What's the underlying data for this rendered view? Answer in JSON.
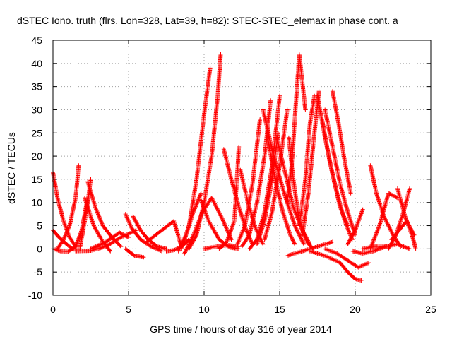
{
  "chart_data": {
    "type": "scatter",
    "title": "dSTEC Iono. truth (flrs, Lon=328, Lat=39, h=82): STEC-STEC_elemax in phase cont. a",
    "xlabel": "GPS time / hours of day 316 of year 2014",
    "ylabel": "dSTEC  / TECUs",
    "xlim": [
      0,
      25
    ],
    "ylim": [
      -10,
      45
    ],
    "x_ticks": [
      0,
      5,
      10,
      15,
      20,
      25
    ],
    "y_ticks": [
      -10,
      -5,
      0,
      5,
      10,
      15,
      20,
      25,
      30,
      35,
      40,
      45
    ],
    "grid": true,
    "marker": "+",
    "color": "#ff0000",
    "series": [
      {
        "x": [
          0.0,
          0.3,
          0.7,
          1.1,
          1.5
        ],
        "y": [
          16.5,
          11,
          6,
          2.5,
          0.5
        ]
      },
      {
        "x": [
          0.0,
          0.4,
          0.9,
          1.3,
          1.8
        ],
        "y": [
          4,
          2.5,
          1,
          0,
          0
        ]
      },
      {
        "x": [
          0.0,
          0.5,
          1.0,
          1.5,
          1.9,
          2.3
        ],
        "y": [
          0,
          -0.5,
          -0.6,
          0.5,
          4,
          11
        ]
      },
      {
        "x": [
          0.3,
          0.7,
          1.1,
          1.5,
          1.7
        ],
        "y": [
          0,
          2,
          5,
          11,
          18
        ]
      },
      {
        "x": [
          1.8,
          2.0,
          2.3,
          2.5
        ],
        "y": [
          0.5,
          4,
          10,
          15
        ]
      },
      {
        "x": [
          2.3,
          2.8,
          3.3,
          3.9,
          4.5
        ],
        "y": [
          14.5,
          9,
          5,
          2.5,
          0.5
        ]
      },
      {
        "x": [
          2.1,
          2.7,
          3.3,
          3.8
        ],
        "y": [
          11,
          5,
          1.5,
          -0.5
        ]
      },
      {
        "x": [
          1.5,
          2.5,
          3.5,
          4.5,
          5.5
        ],
        "y": [
          -0.5,
          -0.4,
          0.5,
          2.5,
          4
        ]
      },
      {
        "x": [
          2.5,
          3.5,
          4.4,
          5.0
        ],
        "y": [
          0,
          1.5,
          3.5,
          2.5
        ]
      },
      {
        "x": [
          4.8,
          5.2,
          5.8,
          6.5,
          7.2
        ],
        "y": [
          7.5,
          4.5,
          2,
          0.5,
          -0.5
        ]
      },
      {
        "x": [
          5.3,
          5.8,
          6.3,
          6.9,
          7.5
        ],
        "y": [
          7,
          4,
          2,
          0.5,
          0
        ]
      },
      {
        "x": [
          6.2,
          7.2,
          8.0,
          8.5
        ],
        "y": [
          1.5,
          4,
          6,
          0.5
        ]
      },
      {
        "x": [
          4.8,
          5.4,
          6.0
        ],
        "y": [
          0,
          -1.5,
          -1.8
        ]
      },
      {
        "x": [
          7.5,
          8.0,
          8.5,
          9.0
        ],
        "y": [
          -0.5,
          -0.3,
          0.5,
          2
        ]
      },
      {
        "x": [
          8.5,
          9.0,
          9.5,
          10.0,
          10.4
        ],
        "y": [
          0,
          5,
          15,
          29,
          39
        ]
      },
      {
        "x": [
          9.0,
          9.5,
          10.0,
          10.5,
          10.9,
          11.1
        ],
        "y": [
          0,
          3,
          10,
          20,
          33,
          42
        ]
      },
      {
        "x": [
          8.3,
          8.8,
          9.3,
          9.8
        ],
        "y": [
          -0.5,
          3,
          8,
          12
        ]
      },
      {
        "x": [
          8.7,
          9.3,
          9.9,
          10.5,
          11.2,
          11.8
        ],
        "y": [
          -1,
          3,
          8,
          11,
          6.5,
          2
        ]
      },
      {
        "x": [
          9.8,
          10.3,
          11.0,
          11.7,
          12.3
        ],
        "y": [
          10.5,
          6,
          2,
          0.3,
          0
        ]
      },
      {
        "x": [
          11.0,
          11.5,
          12.0,
          12.3
        ],
        "y": [
          0,
          1.5,
          6,
          22
        ]
      },
      {
        "x": [
          10.0,
          10.8,
          11.6,
          12.3
        ],
        "y": [
          0,
          0.5,
          0.8,
          0.5
        ]
      },
      {
        "x": [
          11.3,
          11.8,
          12.3,
          12.8,
          13.2
        ],
        "y": [
          21.5,
          15,
          9,
          4,
          1
        ]
      },
      {
        "x": [
          12.4,
          12.9,
          13.4,
          13.9
        ],
        "y": [
          17,
          10,
          4.5,
          1
        ]
      },
      {
        "x": [
          12.2,
          12.7,
          13.2,
          13.7
        ],
        "y": [
          1,
          5,
          14,
          28
        ]
      },
      {
        "x": [
          12.5,
          13.0,
          13.5,
          14.0,
          14.4
        ],
        "y": [
          0.5,
          3,
          10,
          20,
          32
        ]
      },
      {
        "x": [
          13.0,
          13.5,
          14.0,
          14.5,
          15.0
        ],
        "y": [
          0,
          2,
          8,
          18,
          33
        ]
      },
      {
        "x": [
          13.5,
          14.0,
          14.5,
          14.9
        ],
        "y": [
          1,
          6,
          15,
          25
        ]
      },
      {
        "x": [
          14.0,
          14.5,
          15.0,
          15.5
        ],
        "y": [
          2,
          8,
          18,
          30
        ]
      },
      {
        "x": [
          14.2,
          14.7,
          15.2,
          15.7,
          16.0
        ],
        "y": [
          24,
          15,
          8,
          3,
          1
        ]
      },
      {
        "x": [
          13.9,
          14.6,
          15.3,
          16.0,
          16.6
        ],
        "y": [
          30,
          20,
          12,
          5,
          1
        ]
      },
      {
        "x": [
          14.8,
          15.4,
          15.9,
          16.5,
          17.0
        ],
        "y": [
          24,
          16,
          9,
          4,
          1
        ]
      },
      {
        "x": [
          15.5,
          15.8,
          16.0,
          16.3,
          16.7
        ],
        "y": [
          10,
          18,
          28,
          42,
          30
        ]
      },
      {
        "x": [
          15.6,
          15.9,
          16.3,
          16.8,
          17.2
        ],
        "y": [
          24,
          15,
          6,
          1.5,
          0
        ]
      },
      {
        "x": [
          16.3,
          16.7,
          17.0,
          17.3
        ],
        "y": [
          5,
          15,
          27,
          33
        ]
      },
      {
        "x": [
          16.5,
          16.9,
          17.3,
          17.6
        ],
        "y": [
          3,
          12,
          25,
          34
        ]
      },
      {
        "x": [
          17.5,
          18.0,
          18.5,
          19.0,
          19.5
        ],
        "y": [
          33,
          24,
          16,
          9,
          5
        ]
      },
      {
        "x": [
          17.8,
          18.3,
          18.8,
          19.3,
          19.8
        ],
        "y": [
          28,
          19,
          12,
          6,
          2
        ]
      },
      {
        "x": [
          18.5,
          18.9,
          19.3,
          19.7
        ],
        "y": [
          34,
          27,
          19,
          12
        ]
      },
      {
        "x": [
          18.0,
          18.5,
          19.0,
          19.5,
          20.0
        ],
        "y": [
          30,
          22,
          14,
          8,
          3
        ]
      },
      {
        "x": [
          15.5,
          16.5,
          17.5,
          18.5
        ],
        "y": [
          -1.5,
          -0.5,
          0.5,
          1.5
        ]
      },
      {
        "x": [
          17.0,
          18.0,
          19.0,
          19.5,
          20.0,
          20.4
        ],
        "y": [
          -0.5,
          -1.5,
          -3,
          -5,
          -6.5,
          -6.8
        ]
      },
      {
        "x": [
          18.0,
          18.8,
          19.5,
          20.2,
          20.9
        ],
        "y": [
          0,
          -1,
          -2.5,
          -4,
          -3
        ]
      },
      {
        "x": [
          19.5,
          20.0,
          20.5
        ],
        "y": [
          1,
          4,
          8.5
        ]
      },
      {
        "x": [
          19.8,
          20.5,
          21.2,
          22.0
        ],
        "y": [
          -0.5,
          -1,
          -0.5,
          0.5
        ]
      },
      {
        "x": [
          20.5,
          21.2,
          22.0,
          22.8,
          23.6
        ],
        "y": [
          0,
          0.5,
          0.5,
          1,
          0
        ]
      },
      {
        "x": [
          21.0,
          21.4,
          21.9,
          22.5,
          23.0
        ],
        "y": [
          18,
          12,
          7,
          3,
          0.5
        ]
      },
      {
        "x": [
          21.0,
          21.6,
          22.2,
          22.8
        ],
        "y": [
          0,
          5,
          12,
          11
        ]
      },
      {
        "x": [
          22.2,
          22.7,
          23.2,
          23.6
        ],
        "y": [
          0,
          3,
          8,
          13
        ]
      },
      {
        "x": [
          22.8,
          23.3,
          23.8,
          24.0
        ],
        "y": [
          13,
          7,
          2.5,
          0
        ]
      },
      {
        "x": [
          22.4,
          22.9,
          23.4,
          23.9
        ],
        "y": [
          2,
          4,
          6,
          3
        ]
      }
    ]
  }
}
